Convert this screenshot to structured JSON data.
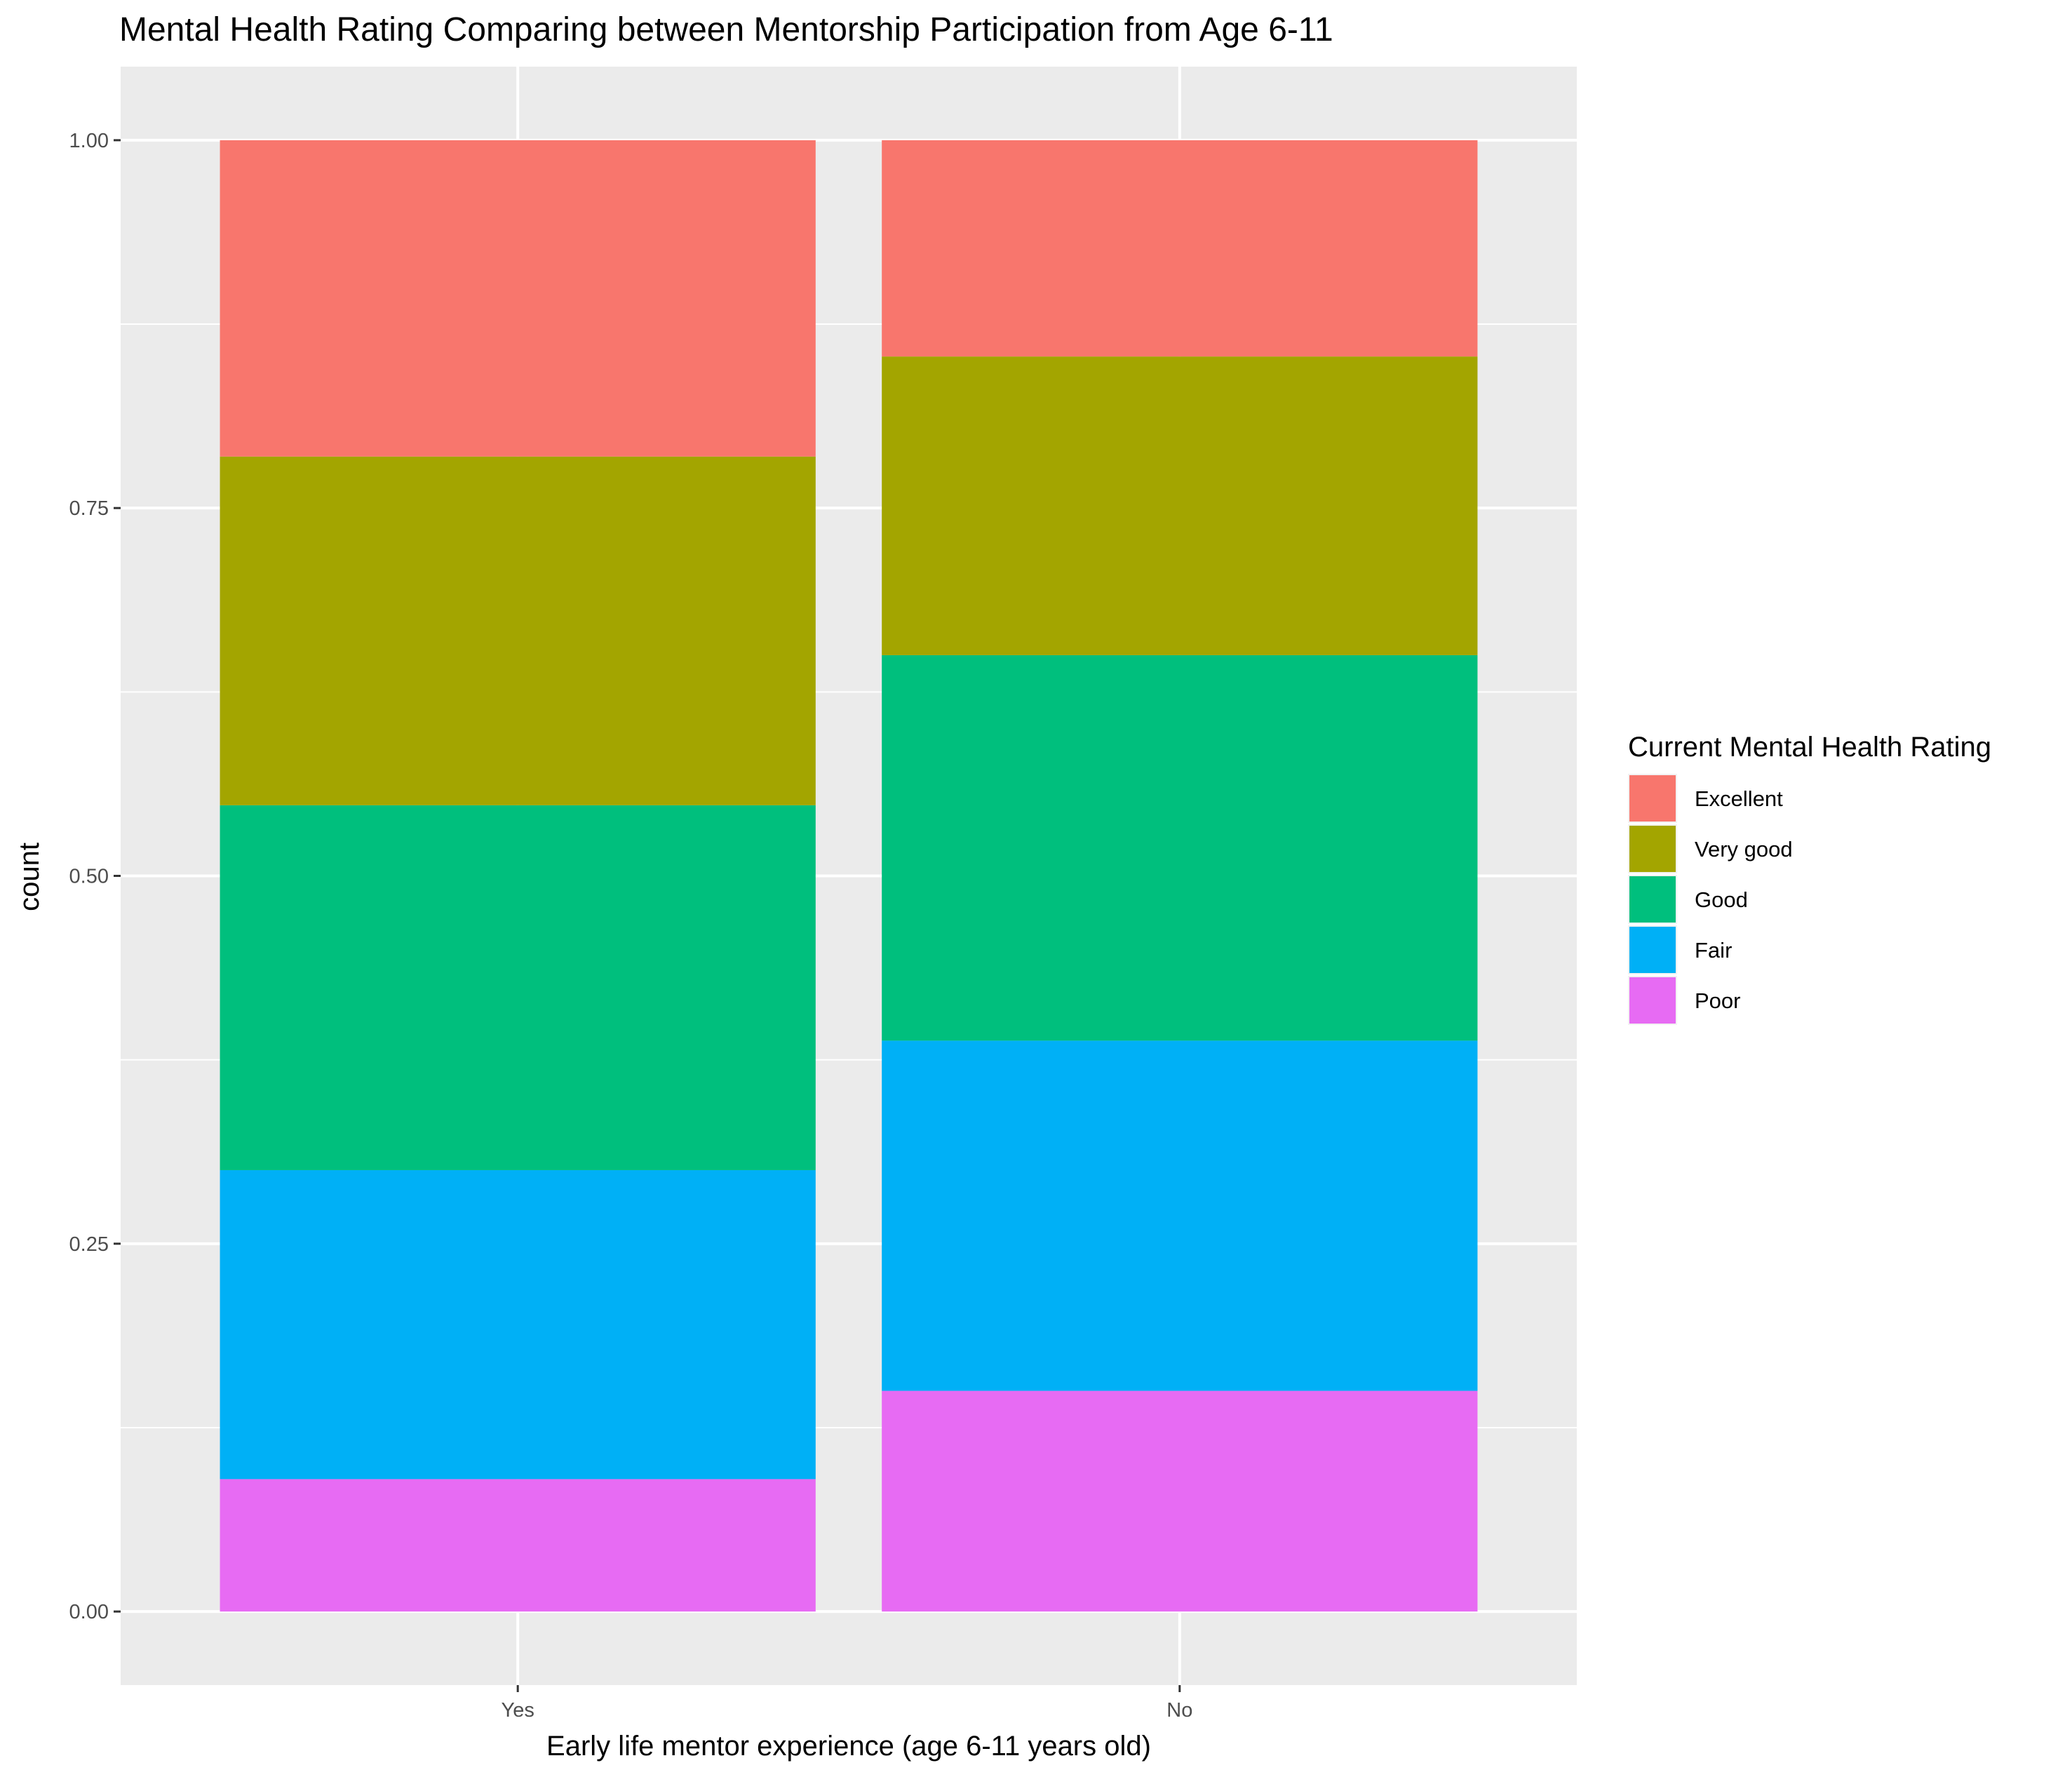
{
  "chart_data": {
    "type": "bar",
    "stacked": true,
    "title": "Mental Health Rating Comparing between Mentorship Participation from Age 6-11",
    "xlabel": "Early life mentor experience (age 6-11 years old)",
    "ylabel": "count",
    "categories": [
      "Yes",
      "No"
    ],
    "ylim": [
      -0.05,
      1.05
    ],
    "yticks": [
      0.0,
      0.25,
      0.5,
      0.75,
      1.0
    ],
    "ytick_labels": [
      "0.00",
      "0.25",
      "0.50",
      "0.75",
      "1.00"
    ],
    "grid": true,
    "legend": {
      "title": "Current Mental Health Rating",
      "position": "right"
    },
    "series": [
      {
        "name": "Excellent",
        "color": "#F8766D",
        "values": [
          0.215,
          0.147
        ]
      },
      {
        "name": "Very good",
        "color": "#A3A500",
        "values": [
          0.237,
          0.203
        ]
      },
      {
        "name": "Good",
        "color": "#00BF7D",
        "values": [
          0.248,
          0.262
        ]
      },
      {
        "name": "Fair",
        "color": "#00B0F6",
        "values": [
          0.21,
          0.238
        ]
      },
      {
        "name": "Poor",
        "color": "#E76BF3",
        "values": [
          0.09,
          0.15
        ]
      }
    ]
  }
}
